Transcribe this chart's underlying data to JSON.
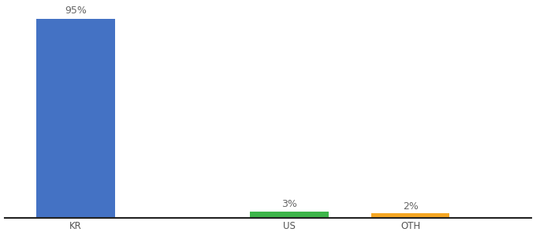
{
  "categories": [
    "KR",
    "US",
    "OTH"
  ],
  "values": [
    95,
    3,
    2
  ],
  "bar_colors": [
    "#4472c4",
    "#3db54a",
    "#f5a623"
  ],
  "labels": [
    "95%",
    "3%",
    "2%"
  ],
  "background_color": "#ffffff",
  "ylim": [
    0,
    100
  ],
  "label_fontsize": 9,
  "tick_fontsize": 8.5,
  "bar_width": 0.55,
  "x_positions": [
    0.5,
    2.0,
    2.85
  ],
  "xlim": [
    0,
    3.7
  ]
}
